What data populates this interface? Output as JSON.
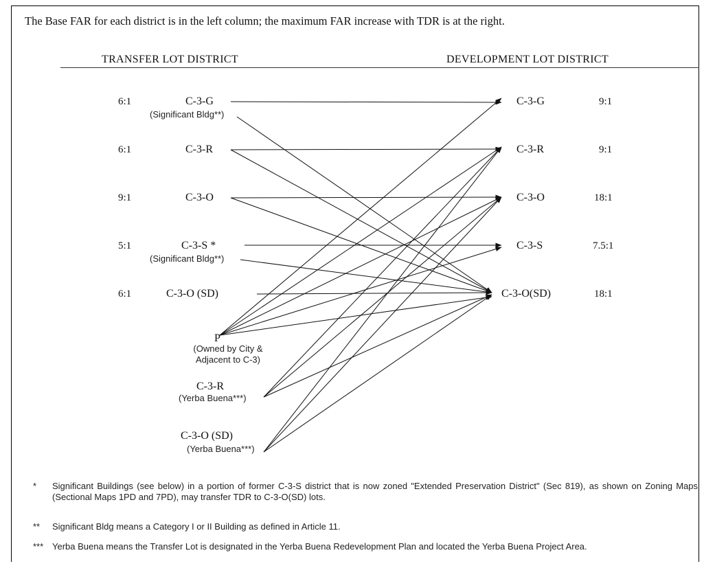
{
  "intro_text": "The Base FAR for each district is in the left column; the maximum FAR increase with TDR is at the right.",
  "headers": {
    "transfer": "TRANSFER LOT DISTRICT",
    "development": "DEVELOPMENT LOT DISTRICT"
  },
  "transfer_districts": [
    {
      "ratio": "6:1",
      "name": "C-3-G",
      "sub": "(Significant Bldg**)"
    },
    {
      "ratio": "6:1",
      "name": "C-3-R",
      "sub": ""
    },
    {
      "ratio": "9:1",
      "name": "C-3-O",
      "sub": ""
    },
    {
      "ratio": "5:1",
      "name": "C-3-S *",
      "sub": "(Significant Bldg**)"
    },
    {
      "ratio": "6:1",
      "name": "C-3-O (SD)",
      "sub": ""
    },
    {
      "ratio": "",
      "name": "P",
      "sub": "(Owned by City & Adjacent to C-3)"
    },
    {
      "ratio": "",
      "name": "C-3-R",
      "sub": "(Yerba Buena***)"
    },
    {
      "ratio": "",
      "name": "C-3-O (SD)",
      "sub": "(Yerba Buena***)"
    }
  ],
  "development_districts": [
    {
      "name": "C-3-G",
      "ratio": "9:1"
    },
    {
      "name": "C-3-R",
      "ratio": "9:1"
    },
    {
      "name": "C-3-O",
      "ratio": "18:1"
    },
    {
      "name": "C-3-S",
      "ratio": "7.5:1"
    },
    {
      "name": "C-3-O(SD)",
      "ratio": "18:1"
    }
  ],
  "transfers": [
    {
      "from": "C-3-G",
      "to": [
        "C-3-G",
        "C-3-O(SD)"
      ]
    },
    {
      "from": "C-3-R",
      "to": [
        "C-3-R",
        "C-3-O(SD)"
      ]
    },
    {
      "from": "C-3-O",
      "to": [
        "C-3-O",
        "C-3-O(SD)"
      ]
    },
    {
      "from": "C-3-S *",
      "to": [
        "C-3-S",
        "C-3-O(SD)"
      ]
    },
    {
      "from": "C-3-O (SD)",
      "to": [
        "C-3-O(SD)"
      ]
    },
    {
      "from": "P",
      "to": [
        "C-3-G",
        "C-3-R",
        "C-3-O",
        "C-3-S",
        "C-3-O(SD)"
      ]
    },
    {
      "from": "C-3-R (Yerba Buena)",
      "to": [
        "C-3-R",
        "C-3-O",
        "C-3-O(SD)"
      ]
    },
    {
      "from": "C-3-O (SD) (Yerba Buena)",
      "to": [
        "C-3-R",
        "C-3-O",
        "C-3-O(SD)"
      ]
    }
  ],
  "footnotes": [
    {
      "marker": "*",
      "text": "Significant Buildings (see below) in a portion of former C-3-S district that is now zoned \"Extended Preservation District\" (Sec 819), as shown on Zoning Maps (Sectional Maps 1PD and 7PD), may transfer TDR to C-3-O(SD) lots."
    },
    {
      "marker": "**",
      "text": "Significant Bldg means a Category I or II Building as defined in Article 11."
    },
    {
      "marker": "***",
      "text": "Yerba Buena means the Transfer Lot is designated in the Yerba Buena Redevelopment Plan and located the Yerba Buena Project Area."
    }
  ]
}
